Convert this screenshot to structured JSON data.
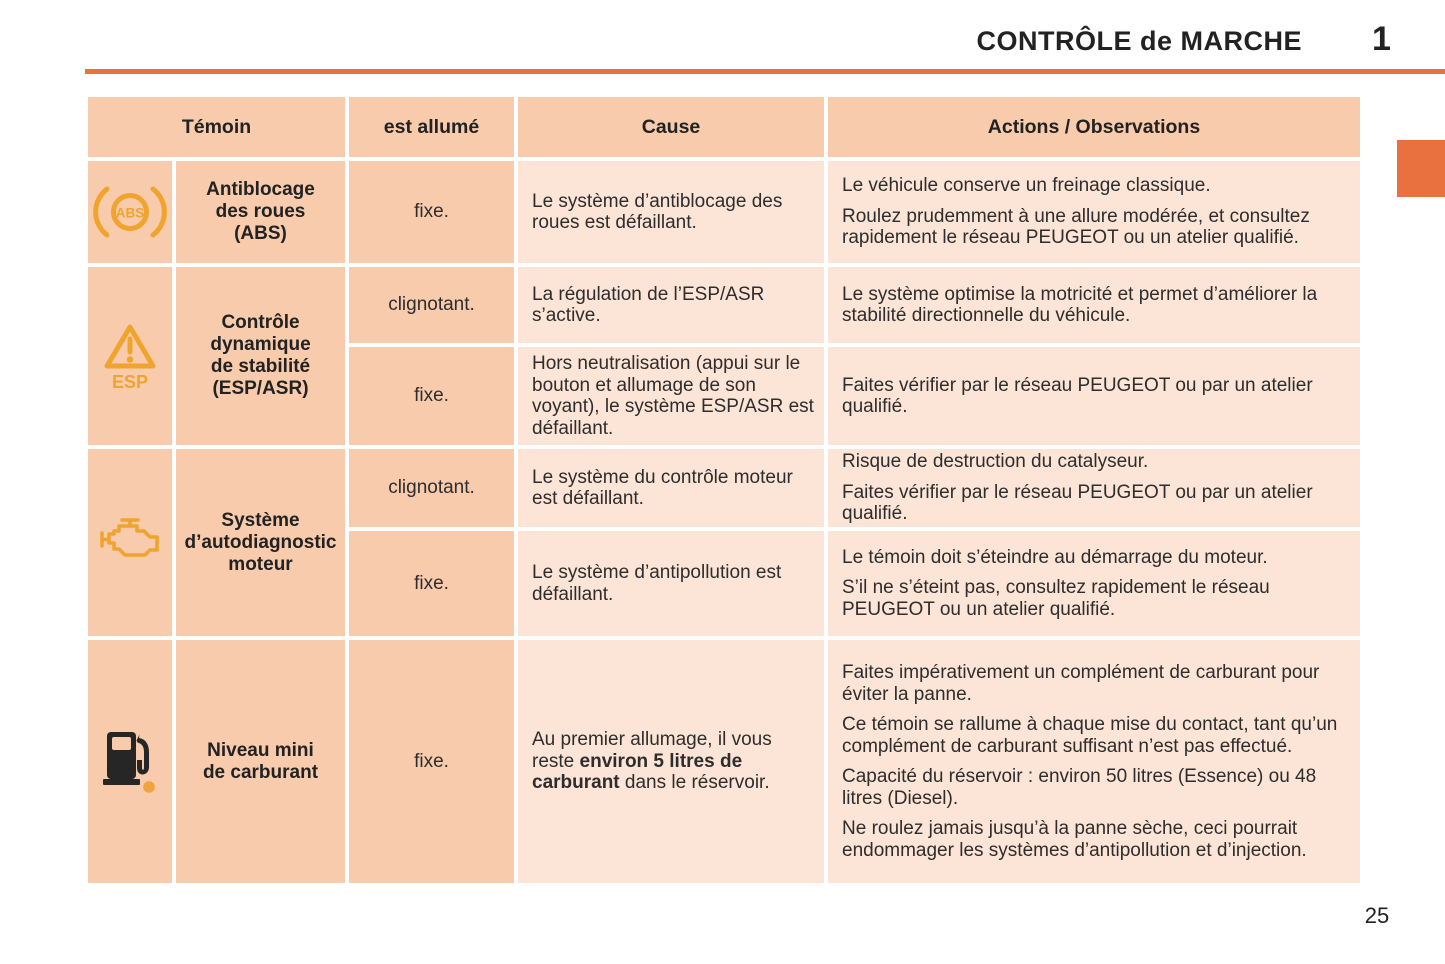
{
  "page": {
    "title": "CONTRÔLE de MARCHE",
    "chapter_number": "1",
    "page_number": "25"
  },
  "colors": {
    "accent_orange": "#E8713F",
    "cell_dark": "#F8CBAC",
    "cell_light": "#FCE5D6",
    "icon_amber": "#F0A42E"
  },
  "table": {
    "headers": {
      "temoin": "Témoin",
      "est_allume": "est allumé",
      "cause": "Cause",
      "actions": "Actions / Observations"
    },
    "rows": [
      {
        "icon": "abs-warning-icon",
        "label": "Antiblocage\ndes roues\n(ABS)",
        "entries": [
          {
            "state": "fixe.",
            "cause": [
              "Le système d’antiblocage des roues est défaillant."
            ],
            "actions": [
              "Le véhicule conserve un freinage classique.",
              "Roulez prudemment à une allure modérée, et consultez rapidement le réseau PEUGEOT ou un atelier qualifié."
            ]
          }
        ]
      },
      {
        "icon": "esp-warning-icon",
        "label": "Contrôle\ndynamique\nde stabilité\n(ESP/ASR)",
        "entries": [
          {
            "state": "clignotant.",
            "cause": [
              "La régulation de l’ESP/ASR s’active."
            ],
            "actions": [
              "Le système optimise la motricité et permet d’améliorer la stabilité directionnelle du véhicule."
            ]
          },
          {
            "state": "fixe.",
            "cause": [
              "Hors neutralisation (appui sur le bouton et allumage de son voyant), le système ESP/ASR est défaillant."
            ],
            "actions": [
              "Faites vérifier par le réseau PEUGEOT ou par un atelier qualifié."
            ]
          }
        ]
      },
      {
        "icon": "engine-warning-icon",
        "label": "Système\nd’autodiagnostic\nmoteur",
        "entries": [
          {
            "state": "clignotant.",
            "cause": [
              "Le système du contrôle moteur est défaillant."
            ],
            "actions": [
              "Risque de destruction du catalyseur.",
              "Faites vérifier par le réseau PEUGEOT ou par un atelier qualifié."
            ]
          },
          {
            "state": "fixe.",
            "cause": [
              "Le système d’antipollution est défaillant."
            ],
            "actions": [
              "Le témoin doit s’éteindre au démarrage du moteur.",
              "S’il ne s’éteint pas, consultez rapidement le réseau PEUGEOT ou un atelier qualifié."
            ]
          }
        ]
      },
      {
        "icon": "fuel-low-icon",
        "label": "Niveau mini\nde carburant",
        "entries": [
          {
            "state": "fixe.",
            "cause": [
              "Au premier allumage, il vous reste **environ 5 litres de carburant** dans le réservoir."
            ],
            "actions": [
              "Faites impérativement un complément de carburant pour éviter la panne.",
              "Ce témoin se rallume à chaque mise du contact, tant qu’un complément de carburant suffisant n’est pas effectué.",
              "Capacité du réservoir : environ 50 litres (Essence) ou 48 litres (Diesel).",
              "Ne roulez jamais jusqu’à la panne sèche, ceci pourrait endommager les systèmes d’antipollution et d’injection."
            ]
          }
        ]
      }
    ]
  }
}
